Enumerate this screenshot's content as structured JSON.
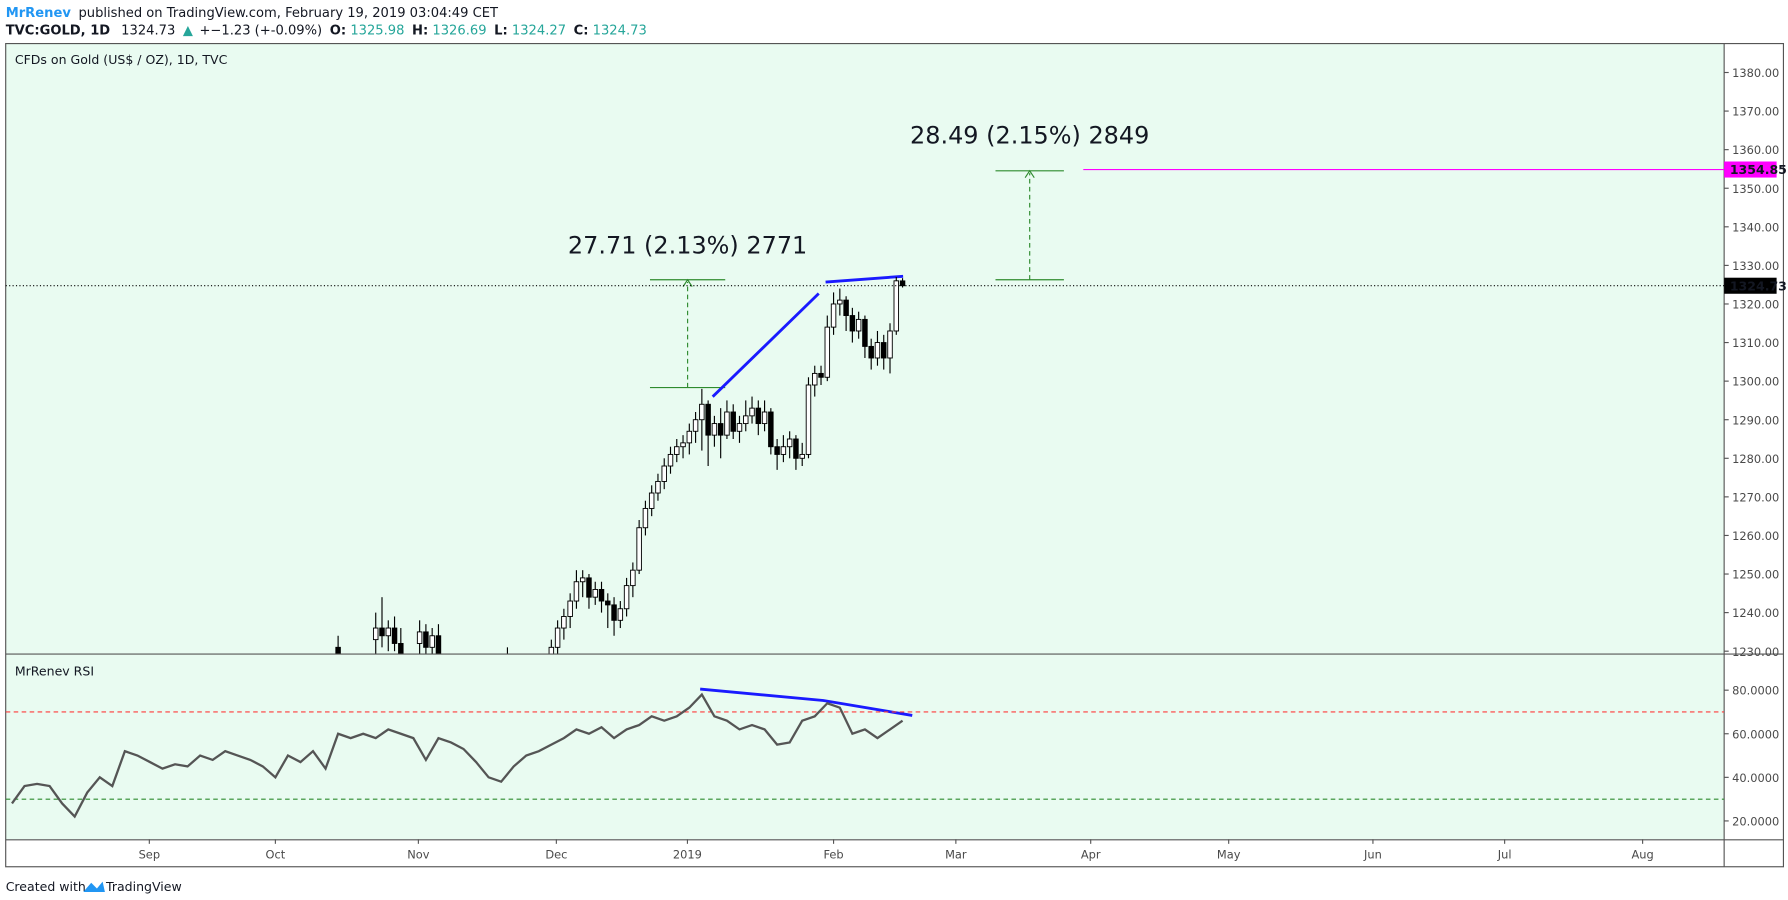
{
  "header": {
    "author": "MrRenev",
    "published": "published on TradingView.com, February 19, 2019 03:04:49 CET",
    "symbol": "TVC:GOLD, 1D",
    "price": "1324.73",
    "arrow": "▲",
    "change": "+−1.23 (+-0.09%)",
    "open_label": "O:",
    "open": "1325.98",
    "high_label": "H:",
    "high": "1326.69",
    "low_label": "L:",
    "low": "1324.27",
    "close_label": "C:",
    "close": "1324.73"
  },
  "footer": {
    "created": "Created with",
    "brand": "TradingView"
  },
  "chart_data": [
    {
      "type": "candlestick",
      "title": "CFDs on Gold (US$ / OZ), 1D, TVC",
      "x": [
        53,
        59,
        60,
        61,
        62,
        63,
        66,
        67,
        68,
        69,
        80,
        87,
        88,
        89,
        90,
        91,
        92,
        93,
        94,
        95,
        96,
        97,
        98,
        99,
        100,
        101,
        102,
        103,
        104,
        105,
        106,
        107,
        108,
        109,
        110,
        111,
        112,
        113,
        114,
        115,
        116,
        117,
        118,
        119,
        120,
        121,
        122,
        123,
        124,
        125,
        126,
        127,
        128,
        129,
        130,
        131,
        132,
        133,
        134,
        135,
        136,
        137,
        138,
        139,
        140,
        141,
        142,
        143
      ],
      "open": [
        1231,
        1233,
        1236,
        1234,
        1236,
        1232,
        1232,
        1235,
        1231,
        1234,
        1228,
        1228,
        1231,
        1236,
        1239,
        1243,
        1248,
        1249,
        1244,
        1246,
        1243,
        1242,
        1238,
        1241,
        1247,
        1251,
        1262,
        1267,
        1271,
        1274,
        1278,
        1281,
        1283,
        1284,
        1287,
        1290,
        1294,
        1286,
        1289,
        1286,
        1292,
        1287,
        1289,
        1291,
        1293,
        1289,
        1292,
        1283,
        1281,
        1283,
        1285,
        1280,
        1281,
        1299,
        1302,
        1301,
        1314,
        1320,
        1321,
        1317,
        1313,
        1316,
        1309,
        1306,
        1310,
        1306,
        1313,
        1325.98
      ],
      "high": [
        1234,
        1240,
        1244,
        1238,
        1239,
        1236,
        1238,
        1237,
        1236,
        1237,
        1231,
        1233,
        1238,
        1241,
        1245,
        1251,
        1251,
        1250,
        1248,
        1248,
        1245,
        1244,
        1243,
        1249,
        1253,
        1264,
        1269,
        1273,
        1276,
        1280,
        1283,
        1285,
        1286,
        1289,
        1292,
        1298,
        1295,
        1291,
        1293,
        1295,
        1294,
        1291,
        1295,
        1296,
        1295,
        1295,
        1293,
        1285,
        1286,
        1287,
        1286,
        1284,
        1301,
        1304,
        1304,
        1317,
        1323,
        1324,
        1322,
        1319,
        1318,
        1317,
        1311,
        1313,
        1312,
        1315,
        1327,
        1326.69
      ],
      "low": [
        1226,
        1228,
        1231,
        1230,
        1230,
        1227,
        1228,
        1229,
        1228,
        1227,
        1225,
        1225,
        1229,
        1233,
        1236,
        1241,
        1244,
        1241,
        1242,
        1240,
        1236,
        1234,
        1236,
        1239,
        1244,
        1250,
        1260,
        1265,
        1269,
        1272,
        1276,
        1279,
        1280,
        1281,
        1284,
        1282,
        1278,
        1283,
        1280,
        1285,
        1285,
        1284,
        1287,
        1289,
        1286,
        1287,
        1281,
        1277,
        1279,
        1280,
        1277,
        1278,
        1280,
        1296,
        1299,
        1300,
        1312,
        1317,
        1313,
        1310,
        1311,
        1306,
        1303,
        1304,
        1303,
        1302,
        1312,
        1324.27
      ],
      "close": [
        1229,
        1236,
        1234,
        1236,
        1232,
        1229,
        1235,
        1231,
        1234,
        1229,
        1227,
        1231,
        1236,
        1239,
        1243,
        1248,
        1249,
        1244,
        1246,
        1243,
        1242,
        1238,
        1241,
        1247,
        1251,
        1262,
        1267,
        1271,
        1274,
        1278,
        1281,
        1283,
        1284,
        1287,
        1290,
        1294,
        1286,
        1289,
        1286,
        1292,
        1287,
        1289,
        1291,
        1293,
        1289,
        1292,
        1283,
        1281,
        1283,
        1285,
        1280,
        1281,
        1299,
        1302,
        1301,
        1314,
        1320,
        1321,
        1317,
        1313,
        1316,
        1309,
        1306,
        1310,
        1306,
        1313,
        1326,
        1324.73
      ],
      "up_color": "#ffffff",
      "down_color": "#000000",
      "xlim": [
        0,
        274
      ],
      "ylim": [
        1229.4,
        1387.5
      ],
      "yticks": [
        {
          "value": 1230,
          "label": "1230.00"
        },
        {
          "value": 1240,
          "label": "1240.00"
        },
        {
          "value": 1250,
          "label": "1250.00"
        },
        {
          "value": 1260,
          "label": "1260.00"
        },
        {
          "value": 1270,
          "label": "1270.00"
        },
        {
          "value": 1280,
          "label": "1280.00"
        },
        {
          "value": 1290,
          "label": "1290.00"
        },
        {
          "value": 1300,
          "label": "1300.00"
        },
        {
          "value": 1310,
          "label": "1310.00"
        },
        {
          "value": 1320,
          "label": "1320.00"
        },
        {
          "value": 1330,
          "label": "1330.00"
        },
        {
          "value": 1340,
          "label": "1340.00"
        },
        {
          "value": 1350,
          "label": "1350.00"
        },
        {
          "value": 1360,
          "label": "1360.00"
        },
        {
          "value": 1370,
          "label": "1370.00"
        },
        {
          "value": 1380,
          "label": "1380.00"
        }
      ],
      "last_price": 1324.73,
      "target_price": 1354.85,
      "target_color": "#ff00ff",
      "annotations": [
        "27.71 (2.13%) 2771",
        "28.49 (2.15%) 2849"
      ]
    },
    {
      "type": "line",
      "title": "MrRenev RSI",
      "color": "#555555",
      "x": [
        1,
        3,
        5,
        7,
        9,
        11,
        13,
        15,
        17,
        19,
        21,
        23,
        25,
        27,
        29,
        31,
        33,
        35,
        37,
        39,
        41,
        43,
        45,
        47,
        49,
        51,
        53,
        55,
        57,
        59,
        61,
        63,
        65,
        67,
        69,
        71,
        73,
        75,
        77,
        79,
        81,
        83,
        85,
        87,
        89,
        91,
        93,
        95,
        97,
        99,
        101,
        103,
        105,
        107,
        109,
        111,
        113,
        115,
        117,
        119,
        121,
        123,
        125,
        127,
        129,
        131,
        133,
        135,
        137,
        139,
        141,
        143
      ],
      "values": [
        28,
        36,
        37,
        36,
        28,
        22,
        33,
        40,
        36,
        52,
        50,
        47,
        44,
        46,
        45,
        50,
        48,
        52,
        50,
        48,
        45,
        40,
        50,
        47,
        52,
        44,
        60,
        58,
        60,
        58,
        62,
        60,
        58,
        48,
        58,
        56,
        53,
        47,
        40,
        38,
        45,
        50,
        52,
        55,
        58,
        62,
        60,
        63,
        58,
        62,
        64,
        68,
        66,
        68,
        72,
        78,
        68,
        66,
        62,
        64,
        62,
        55,
        56,
        66,
        68,
        74,
        72,
        60,
        62,
        58,
        62,
        66
      ],
      "xlim": [
        0,
        274
      ],
      "ylim": [
        11.6,
        96.3
      ],
      "upper_band": 70,
      "lower_band": 30,
      "yticks": [
        {
          "value": 20,
          "label": "20.0000"
        },
        {
          "value": 40,
          "label": "40.0000"
        },
        {
          "value": 60,
          "label": "60.0000"
        },
        {
          "value": 80,
          "label": "80.0000"
        }
      ],
      "xticks": [
        {
          "value": 22.9,
          "label": "Sep"
        },
        {
          "value": 43,
          "label": "Oct"
        },
        {
          "value": 65.8,
          "label": "Nov"
        },
        {
          "value": 87.8,
          "label": "Dec"
        },
        {
          "value": 108.7,
          "label": "2019"
        },
        {
          "value": 132,
          "label": "Feb"
        },
        {
          "value": 151.5,
          "label": "Mar"
        },
        {
          "value": 173,
          "label": "Apr"
        },
        {
          "value": 195,
          "label": "May"
        },
        {
          "value": 218,
          "label": "Jun"
        },
        {
          "value": 239,
          "label": "Jul"
        },
        {
          "value": 261,
          "label": "Aug"
        }
      ]
    }
  ]
}
